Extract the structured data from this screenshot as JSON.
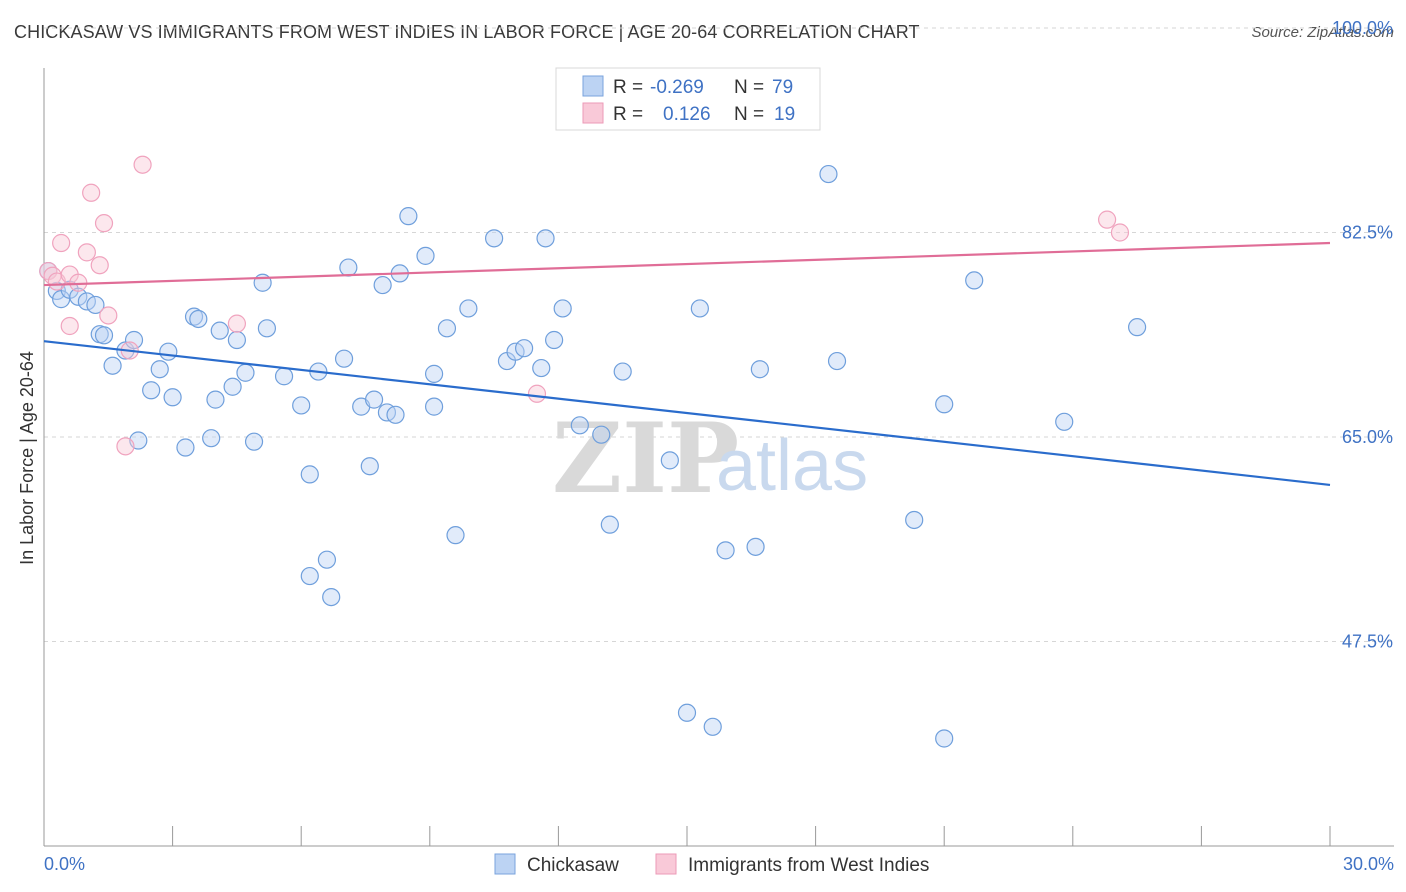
{
  "header": {
    "title": "CHICKASAW VS IMMIGRANTS FROM WEST INDIES IN LABOR FORCE | AGE 20-64 CORRELATION CHART",
    "source": "Source: ZipAtlas.com"
  },
  "watermark": {
    "zip": "ZIP",
    "atlas": "atlas"
  },
  "legend_top": [
    {
      "r_label": "R =",
      "r_value": "-0.269",
      "n_label": "N =",
      "n_value": "79"
    },
    {
      "r_label": "R =",
      "r_value": "0.126",
      "n_label": "N =",
      "n_value": "19"
    }
  ],
  "chart_data": {
    "type": "scatter",
    "ylabel": "In Labor Force | Age 20-64",
    "xlim": [
      0,
      30
    ],
    "ylim": [
      30,
      100
    ],
    "x_tick_labels": [
      "0.0%",
      "30.0%"
    ],
    "y_ticks": [
      47.5,
      65.0,
      82.5,
      100.0
    ],
    "y_tick_labels": [
      "47.5%",
      "65.0%",
      "82.5%",
      "100.0%"
    ],
    "grid": true,
    "legend_placement": "top-center",
    "colors": {
      "chickasaw": "#6f9fdc",
      "westindies": "#f0a3be",
      "chickasaw_line": "#2a6ccc",
      "westindies_line": "#e06d97"
    },
    "series": [
      {
        "name": "Chickasaw",
        "trend": {
          "x": [
            0,
            30
          ],
          "y": [
            73.2,
            60.9
          ]
        },
        "points": [
          [
            0.1,
            79.2
          ],
          [
            0.3,
            77.5
          ],
          [
            0.4,
            76.8
          ],
          [
            0.6,
            77.6
          ],
          [
            0.8,
            77.0
          ],
          [
            1.0,
            76.6
          ],
          [
            1.2,
            76.3
          ],
          [
            1.3,
            73.8
          ],
          [
            1.4,
            73.7
          ],
          [
            1.6,
            71.1
          ],
          [
            1.9,
            72.4
          ],
          [
            2.1,
            73.3
          ],
          [
            2.2,
            64.7
          ],
          [
            2.5,
            69.0
          ],
          [
            2.7,
            70.8
          ],
          [
            2.9,
            72.3
          ],
          [
            3.0,
            68.4
          ],
          [
            3.3,
            64.1
          ],
          [
            3.5,
            75.3
          ],
          [
            3.6,
            75.1
          ],
          [
            3.9,
            64.9
          ],
          [
            4.0,
            68.2
          ],
          [
            4.1,
            74.1
          ],
          [
            4.4,
            69.3
          ],
          [
            4.5,
            73.3
          ],
          [
            4.7,
            70.5
          ],
          [
            4.9,
            64.6
          ],
          [
            5.1,
            78.2
          ],
          [
            5.2,
            74.3
          ],
          [
            5.6,
            70.2
          ],
          [
            6.0,
            67.7
          ],
          [
            6.2,
            61.8
          ],
          [
            6.4,
            70.6
          ],
          [
            6.2,
            53.1
          ],
          [
            6.7,
            51.3
          ],
          [
            6.6,
            54.5
          ],
          [
            7.0,
            71.7
          ],
          [
            7.1,
            79.5
          ],
          [
            7.4,
            67.6
          ],
          [
            7.6,
            62.5
          ],
          [
            7.7,
            68.2
          ],
          [
            7.9,
            78.0
          ],
          [
            8.0,
            67.1
          ],
          [
            8.2,
            66.9
          ],
          [
            8.3,
            79.0
          ],
          [
            8.5,
            83.9
          ],
          [
            8.9,
            80.5
          ],
          [
            9.1,
            67.6
          ],
          [
            9.1,
            70.4
          ],
          [
            9.4,
            74.3
          ],
          [
            9.6,
            56.6
          ],
          [
            9.9,
            76.0
          ],
          [
            10.5,
            82.0
          ],
          [
            10.8,
            71.5
          ],
          [
            11.0,
            72.3
          ],
          [
            11.2,
            72.6
          ],
          [
            11.6,
            70.9
          ],
          [
            11.7,
            82.0
          ],
          [
            11.9,
            73.3
          ],
          [
            12.1,
            76.0
          ],
          [
            12.5,
            66.0
          ],
          [
            13.0,
            65.2
          ],
          [
            13.2,
            57.5
          ],
          [
            13.5,
            70.6
          ],
          [
            14.6,
            63.0
          ],
          [
            15.0,
            41.4
          ],
          [
            15.3,
            76.0
          ],
          [
            15.6,
            40.2
          ],
          [
            15.9,
            55.3
          ],
          [
            16.6,
            55.6
          ],
          [
            16.7,
            70.8
          ],
          [
            18.3,
            87.5
          ],
          [
            18.5,
            71.5
          ],
          [
            20.3,
            57.9
          ],
          [
            21.0,
            67.8
          ],
          [
            21.0,
            39.2
          ],
          [
            21.7,
            78.4
          ],
          [
            23.8,
            66.3
          ],
          [
            25.5,
            74.4
          ]
        ]
      },
      {
        "name": "Immigrants from West Indies",
        "trend": {
          "x": [
            0,
            30
          ],
          "y": [
            78.0,
            81.6
          ]
        },
        "points": [
          [
            0.1,
            79.2
          ],
          [
            0.2,
            78.8
          ],
          [
            0.3,
            78.3
          ],
          [
            0.4,
            81.6
          ],
          [
            0.6,
            78.9
          ],
          [
            0.6,
            74.5
          ],
          [
            0.8,
            78.2
          ],
          [
            1.0,
            80.8
          ],
          [
            1.1,
            85.9
          ],
          [
            1.3,
            79.7
          ],
          [
            1.4,
            83.3
          ],
          [
            1.5,
            75.4
          ],
          [
            1.9,
            64.2
          ],
          [
            2.0,
            72.4
          ],
          [
            2.3,
            88.3
          ],
          [
            4.5,
            74.7
          ],
          [
            11.5,
            68.7
          ],
          [
            24.8,
            83.6
          ],
          [
            25.1,
            82.5
          ]
        ]
      }
    ]
  },
  "legend_bottom": [
    {
      "label": "Chickasaw"
    },
    {
      "label": "Immigrants from West Indies"
    }
  ]
}
